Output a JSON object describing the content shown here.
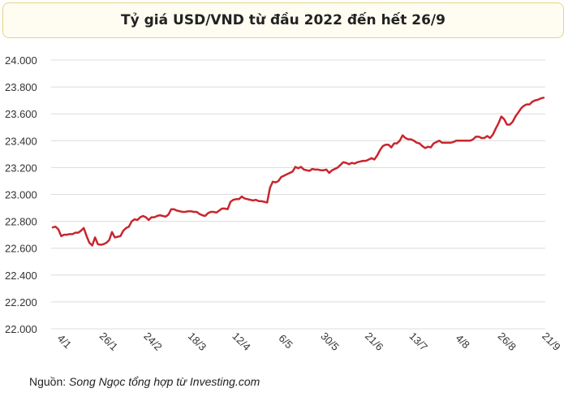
{
  "title": "Tỷ giá USD/VND từ đầu 2022 đến hết 26/9",
  "source": {
    "prefix": "Nguồn: ",
    "credit": "Song Ngọc tổng hợp từ Investing.com"
  },
  "colors": {
    "line": "#c8262e",
    "grid": "#dcdcdc",
    "title_border": "#e3d58a",
    "title_bg": "#fffdf2"
  },
  "chart_data": {
    "type": "line",
    "title": "Tỷ giá USD/VND từ đầu 2022 đến hết 26/9",
    "xlabel": "",
    "ylabel": "",
    "ylim": [
      22000,
      24000
    ],
    "yticks": [
      22000,
      22200,
      22400,
      22600,
      22800,
      23000,
      23200,
      23400,
      23600,
      23800,
      24000
    ],
    "ytick_labels": [
      "22.000",
      "22.200",
      "22.400",
      "22.600",
      "22.800",
      "23.000",
      "23.200",
      "23.400",
      "23.600",
      "23.800",
      "24.000"
    ],
    "xticks": [
      "4/1",
      "26/1",
      "24/2",
      "18/3",
      "12/4",
      "6/5",
      "30/5",
      "21/6",
      "13/7",
      "4/8",
      "26/8",
      "21/9"
    ],
    "grid": "horizontal",
    "legend": "none",
    "series": [
      {
        "values": [
          22755,
          22760,
          22740,
          22690,
          22700,
          22700,
          22705,
          22705,
          22715,
          22715,
          22730,
          22750,
          22690,
          22640,
          22620,
          22680,
          22630,
          22625,
          22630,
          22640,
          22660,
          22720,
          22680,
          22685,
          22690,
          22730,
          22750,
          22760,
          22800,
          22815,
          22810,
          22830,
          22840,
          22830,
          22810,
          22830,
          22830,
          22840,
          22845,
          22840,
          22835,
          22850,
          22890,
          22890,
          22880,
          22875,
          22870,
          22870,
          22875,
          22875,
          22870,
          22870,
          22855,
          22845,
          22840,
          22860,
          22870,
          22870,
          22865,
          22880,
          22895,
          22895,
          22890,
          22945,
          22960,
          22965,
          22965,
          22985,
          22970,
          22965,
          22960,
          22955,
          22960,
          22950,
          22950,
          22945,
          22940,
          23050,
          23095,
          23090,
          23100,
          23130,
          23140,
          23150,
          23160,
          23170,
          23205,
          23195,
          23205,
          23185,
          23180,
          23175,
          23190,
          23185,
          23185,
          23180,
          23180,
          23185,
          23160,
          23180,
          23190,
          23200,
          23220,
          23240,
          23235,
          23225,
          23235,
          23230,
          23240,
          23245,
          23250,
          23250,
          23260,
          23270,
          23260,
          23290,
          23330,
          23360,
          23370,
          23370,
          23350,
          23380,
          23380,
          23400,
          23440,
          23420,
          23410,
          23410,
          23400,
          23385,
          23380,
          23360,
          23345,
          23355,
          23350,
          23380,
          23390,
          23400,
          23385,
          23385,
          23385,
          23385,
          23390,
          23400,
          23400,
          23400,
          23400,
          23400,
          23400,
          23410,
          23430,
          23430,
          23420,
          23420,
          23435,
          23420,
          23445,
          23490,
          23530,
          23580,
          23560,
          23520,
          23520,
          23540,
          23580,
          23610,
          23640,
          23660,
          23670,
          23670,
          23690,
          23700,
          23705,
          23715,
          23720
        ]
      }
    ]
  }
}
